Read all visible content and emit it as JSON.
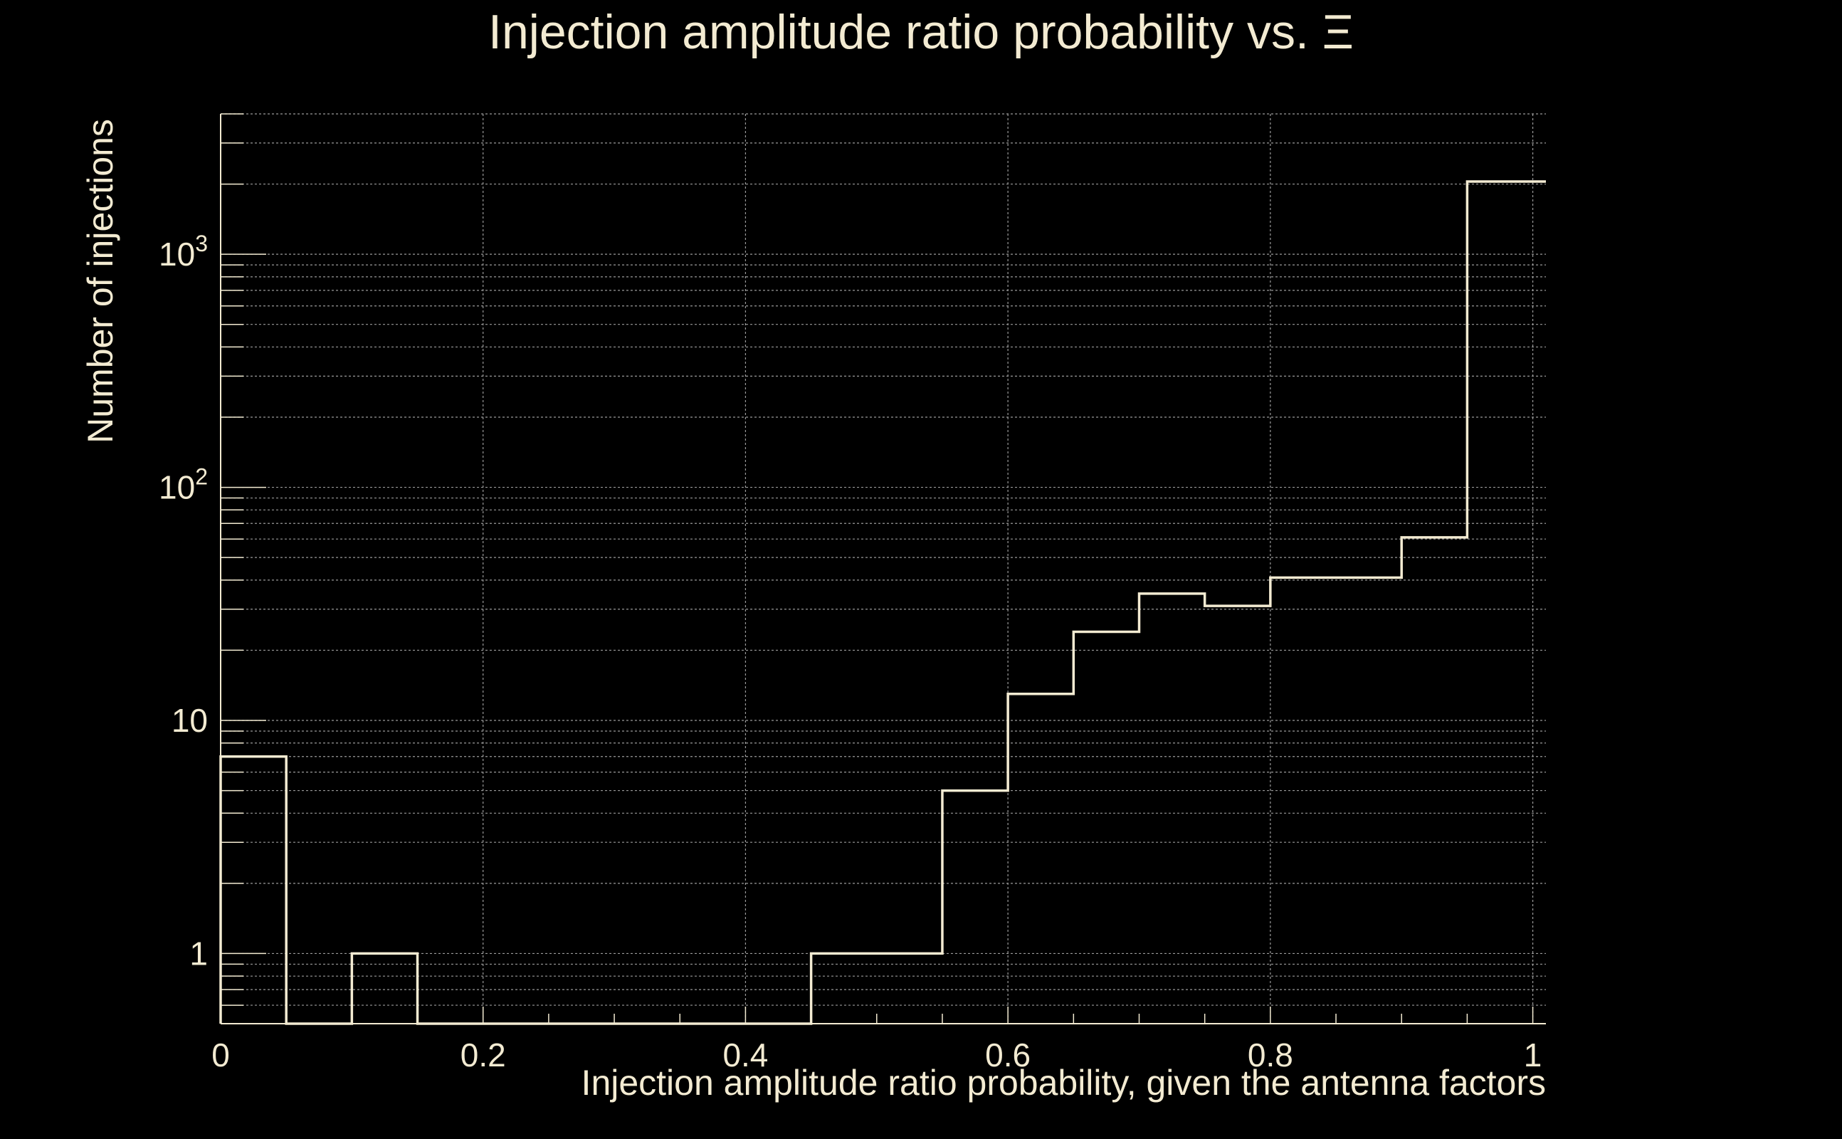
{
  "chart_data": {
    "type": "histogram",
    "title": "Injection amplitude ratio probability vs.  Ξ",
    "xlabel": "Injection amplitude ratio probability, given the antenna factors",
    "ylabel": "Number of injections",
    "xlim": [
      0,
      1.01
    ],
    "ylim": [
      0.5,
      4000
    ],
    "y_scale": "log",
    "grid": true,
    "bin_edges": [
      0,
      0.05,
      0.1,
      0.15,
      0.2,
      0.25,
      0.3,
      0.35,
      0.4,
      0.45,
      0.5,
      0.55,
      0.6,
      0.65,
      0.7,
      0.75,
      0.8,
      0.85,
      0.9,
      0.95,
      1.01
    ],
    "counts": [
      7,
      0,
      1,
      0,
      0,
      0,
      0,
      0,
      0,
      1,
      1,
      5,
      13,
      24,
      35,
      31,
      41,
      41,
      61,
      2050
    ],
    "x_ticks": [
      {
        "value": 0,
        "label": "0"
      },
      {
        "value": 0.2,
        "label": "0.2"
      },
      {
        "value": 0.4,
        "label": "0.4"
      },
      {
        "value": 0.6,
        "label": "0.6"
      },
      {
        "value": 0.8,
        "label": "0.8"
      },
      {
        "value": 1,
        "label": "1"
      }
    ],
    "y_ticks": [
      {
        "value": 1,
        "label": "1",
        "sup": ""
      },
      {
        "value": 10,
        "label": "10",
        "sup": ""
      },
      {
        "value": 100,
        "label": "10",
        "sup": "2"
      },
      {
        "value": 1000,
        "label": "10",
        "sup": "3"
      }
    ],
    "colors": {
      "background": "#000000",
      "foreground": "#f3ebd2",
      "line": "#f3ebd2",
      "grid": "#9a9a9a"
    }
  }
}
